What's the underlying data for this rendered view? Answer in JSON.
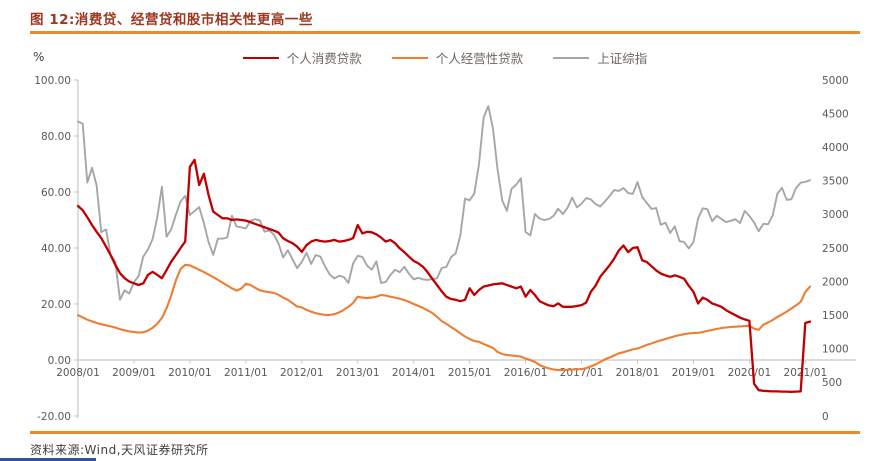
{
  "title": "图 12:消费贷、经营贷和股市相关性更高一些",
  "source_note": "资料来源:Wind,天风证券研究所",
  "colors": {
    "title_text": "#9c3720",
    "accent_rule": "#e98a2e",
    "bottom_accent": "#2f5597",
    "axis_line": "#c6c6c6",
    "tick_text": "#595959",
    "consumer_loan_line": "#c00000",
    "business_loan_line": "#ed7d31",
    "index_line": "#a6a6a6"
  },
  "chart_data": {
    "type": "line",
    "frequency": "monthly",
    "x_start": "2008/01",
    "x_end": "2021/02",
    "x_tick_labels": [
      "2008/01",
      "2009/01",
      "2010/01",
      "2011/01",
      "2012/01",
      "2013/01",
      "2014/01",
      "2015/01",
      "2016/01",
      "2017/01",
      "2018/01",
      "2019/01",
      "2020/01",
      "2021/01"
    ],
    "left_axis": {
      "unit": "%",
      "min": -20,
      "max": 100,
      "tick_values": [
        100,
        80,
        60,
        40,
        20,
        0,
        -20
      ],
      "tick_labels": [
        "100.00",
        "80.00",
        "60.00",
        "40.00",
        "20.00",
        "0.00",
        "-20.00"
      ]
    },
    "right_axis": {
      "min": 0,
      "max": 5000,
      "tick_values": [
        5000,
        4500,
        4000,
        3500,
        3000,
        2500,
        2000,
        1500,
        1000,
        500,
        0
      ],
      "tick_labels": [
        "5000",
        "4500",
        "4000",
        "3500",
        "3000",
        "2500",
        "2000",
        "1500",
        "1000",
        "500",
        "0"
      ]
    },
    "grid": false,
    "legend_position": "top-center",
    "series": [
      {
        "name": "个人消费贷款",
        "axis": "left",
        "color": "#c00000",
        "values": [
          55,
          53.5,
          51,
          48.2,
          45.8,
          43.5,
          40.5,
          37.5,
          34,
          31,
          29.2,
          28,
          27.4,
          26.8,
          27.4,
          30.4,
          31.5,
          30.4,
          29.2,
          32.1,
          35.1,
          37.5,
          40,
          42.3,
          69,
          71.5,
          62.5,
          66.5,
          59,
          53,
          51.8,
          50.6,
          50.6,
          50,
          50.2,
          50,
          49.8,
          49.2,
          48.6,
          48,
          47.4,
          46.8,
          46.2,
          45.5,
          43.5,
          42.5,
          41.7,
          40.5,
          38.6,
          41,
          42.3,
          42.9,
          42.5,
          42.3,
          42.5,
          42.9,
          42.3,
          42.5,
          42.9,
          43.5,
          48.2,
          45.2,
          45.8,
          45.6,
          44.9,
          43.7,
          42.3,
          42.9,
          41.7,
          39.9,
          38.5,
          36.9,
          35.4,
          34.5,
          33.3,
          31.3,
          29,
          26.8,
          24.5,
          22.6,
          21.8,
          21.5,
          21,
          21.5,
          25.6,
          23.2,
          25,
          26.2,
          26.6,
          27,
          27.2,
          27.4,
          26.8,
          26.2,
          25.6,
          26.2,
          22.6,
          25,
          23.2,
          21,
          20.2,
          19.5,
          19.2,
          20.2,
          19,
          19,
          19,
          19.3,
          19.6,
          20.5,
          24.4,
          26.5,
          29.7,
          31.8,
          33.8,
          36.2,
          39.1,
          40.9,
          38.5,
          40,
          40.3,
          35.6,
          35,
          33.5,
          32,
          30.9,
          30.2,
          29.7,
          30.2,
          29.7,
          29,
          26.5,
          24.4,
          20.2,
          22.3,
          21.5,
          20.2,
          19.6,
          19,
          17.8,
          16.9,
          16,
          15.1,
          14.5,
          14,
          -8.5,
          -10.8,
          -11,
          -11.1,
          -11.2,
          -11.2,
          -11.3,
          -11.3,
          -11.4,
          -11.3,
          -11.2,
          13.2,
          13.7
        ]
      },
      {
        "name": "个人经营性贷款",
        "axis": "left",
        "color": "#ed7d31",
        "values": [
          16,
          15.2,
          14.4,
          13.8,
          13.2,
          12.8,
          12.4,
          12,
          11.6,
          11,
          10.6,
          10.2,
          10,
          9.8,
          9.9,
          10.5,
          11.5,
          13,
          15,
          18.5,
          23,
          28.5,
          32.5,
          34,
          33.8,
          33,
          32.2,
          31.4,
          30.5,
          29.6,
          28.6,
          27.6,
          26.6,
          25.6,
          24.8,
          25.5,
          27.2,
          26.8,
          25.8,
          24.9,
          24.5,
          24.2,
          24,
          23.3,
          22.3,
          21.5,
          20.3,
          19.1,
          18.8,
          17.9,
          17.3,
          16.7,
          16.4,
          16.1,
          16.1,
          16.4,
          17,
          17.9,
          19,
          20.4,
          22.6,
          22.3,
          22.1,
          22.3,
          22.6,
          23.2,
          23,
          22.6,
          22.3,
          21.9,
          21.4,
          20.8,
          20,
          19.3,
          18.6,
          17.7,
          16.8,
          15.4,
          13.9,
          12.9,
          11.8,
          10.7,
          9.5,
          8.4,
          7.5,
          6.8,
          6.5,
          5.7,
          5,
          4.3,
          2.9,
          2.1,
          1.8,
          1.6,
          1.4,
          1.2,
          0.5,
          0,
          -0.7,
          -1.8,
          -2.5,
          -3,
          -3.4,
          -3.6,
          -3.6,
          -3.5,
          -3.4,
          -3.3,
          -3.3,
          -2.9,
          -2.3,
          -1.6,
          -0.7,
          0.2,
          0.9,
          1.6,
          2.4,
          2.8,
          3.3,
          3.8,
          4.1,
          4.7,
          5.4,
          5.9,
          6.5,
          7,
          7.5,
          8,
          8.5,
          8.9,
          9.2,
          9.5,
          9.6,
          9.7,
          10,
          10.4,
          10.7,
          11.1,
          11.4,
          11.6,
          11.8,
          11.9,
          12,
          12.1,
          12.2,
          11.2,
          10.8,
          12.6,
          13.4,
          14.3,
          15.4,
          16.3,
          17.3,
          18.4,
          19.5,
          20.8,
          24.3,
          26.2
        ]
      },
      {
        "name": "上证综指",
        "axis": "right",
        "color": "#a6a6a6",
        "values": [
          4383,
          4349,
          3473,
          3693,
          3433,
          2736,
          2776,
          2397,
          2294,
          1729,
          1871,
          1821,
          1991,
          2083,
          2373,
          2478,
          2633,
          2959,
          3412,
          2668,
          2779,
          2995,
          3195,
          3277,
          2989,
          3052,
          3109,
          2871,
          2592,
          2398,
          2638,
          2639,
          2656,
          2979,
          2820,
          2808,
          2790,
          2905,
          2928,
          2911,
          2743,
          2762,
          2701,
          2567,
          2359,
          2468,
          2333,
          2199,
          2293,
          2428,
          2263,
          2396,
          2372,
          2225,
          2104,
          2047,
          2086,
          2068,
          1980,
          2269,
          2385,
          2366,
          2237,
          2177,
          2301,
          1979,
          1994,
          2098,
          2175,
          2141,
          2221,
          2116,
          2033,
          2056,
          2033,
          2026,
          2039,
          2048,
          2202,
          2217,
          2364,
          2420,
          2683,
          3235,
          3210,
          3310,
          3748,
          4442,
          4612,
          4277,
          3664,
          3206,
          3053,
          3383,
          3445,
          3539,
          2738,
          2688,
          3004,
          2938,
          2917,
          2930,
          2979,
          3085,
          3005,
          3100,
          3250,
          3104,
          3159,
          3242,
          3223,
          3155,
          3117,
          3192,
          3273,
          3361,
          3349,
          3393,
          3317,
          3307,
          3481,
          3259,
          3169,
          3082,
          3095,
          2847,
          2876,
          2725,
          2821,
          2603,
          2588,
          2494,
          2585,
          2941,
          3091,
          3078,
          2899,
          2979,
          2933,
          2886,
          2905,
          2929,
          2872,
          3050,
          2977,
          2880,
          2750,
          2860,
          2852,
          2985,
          3310,
          3396,
          3218,
          3225,
          3392,
          3473,
          3483,
          3509
        ]
      }
    ]
  }
}
